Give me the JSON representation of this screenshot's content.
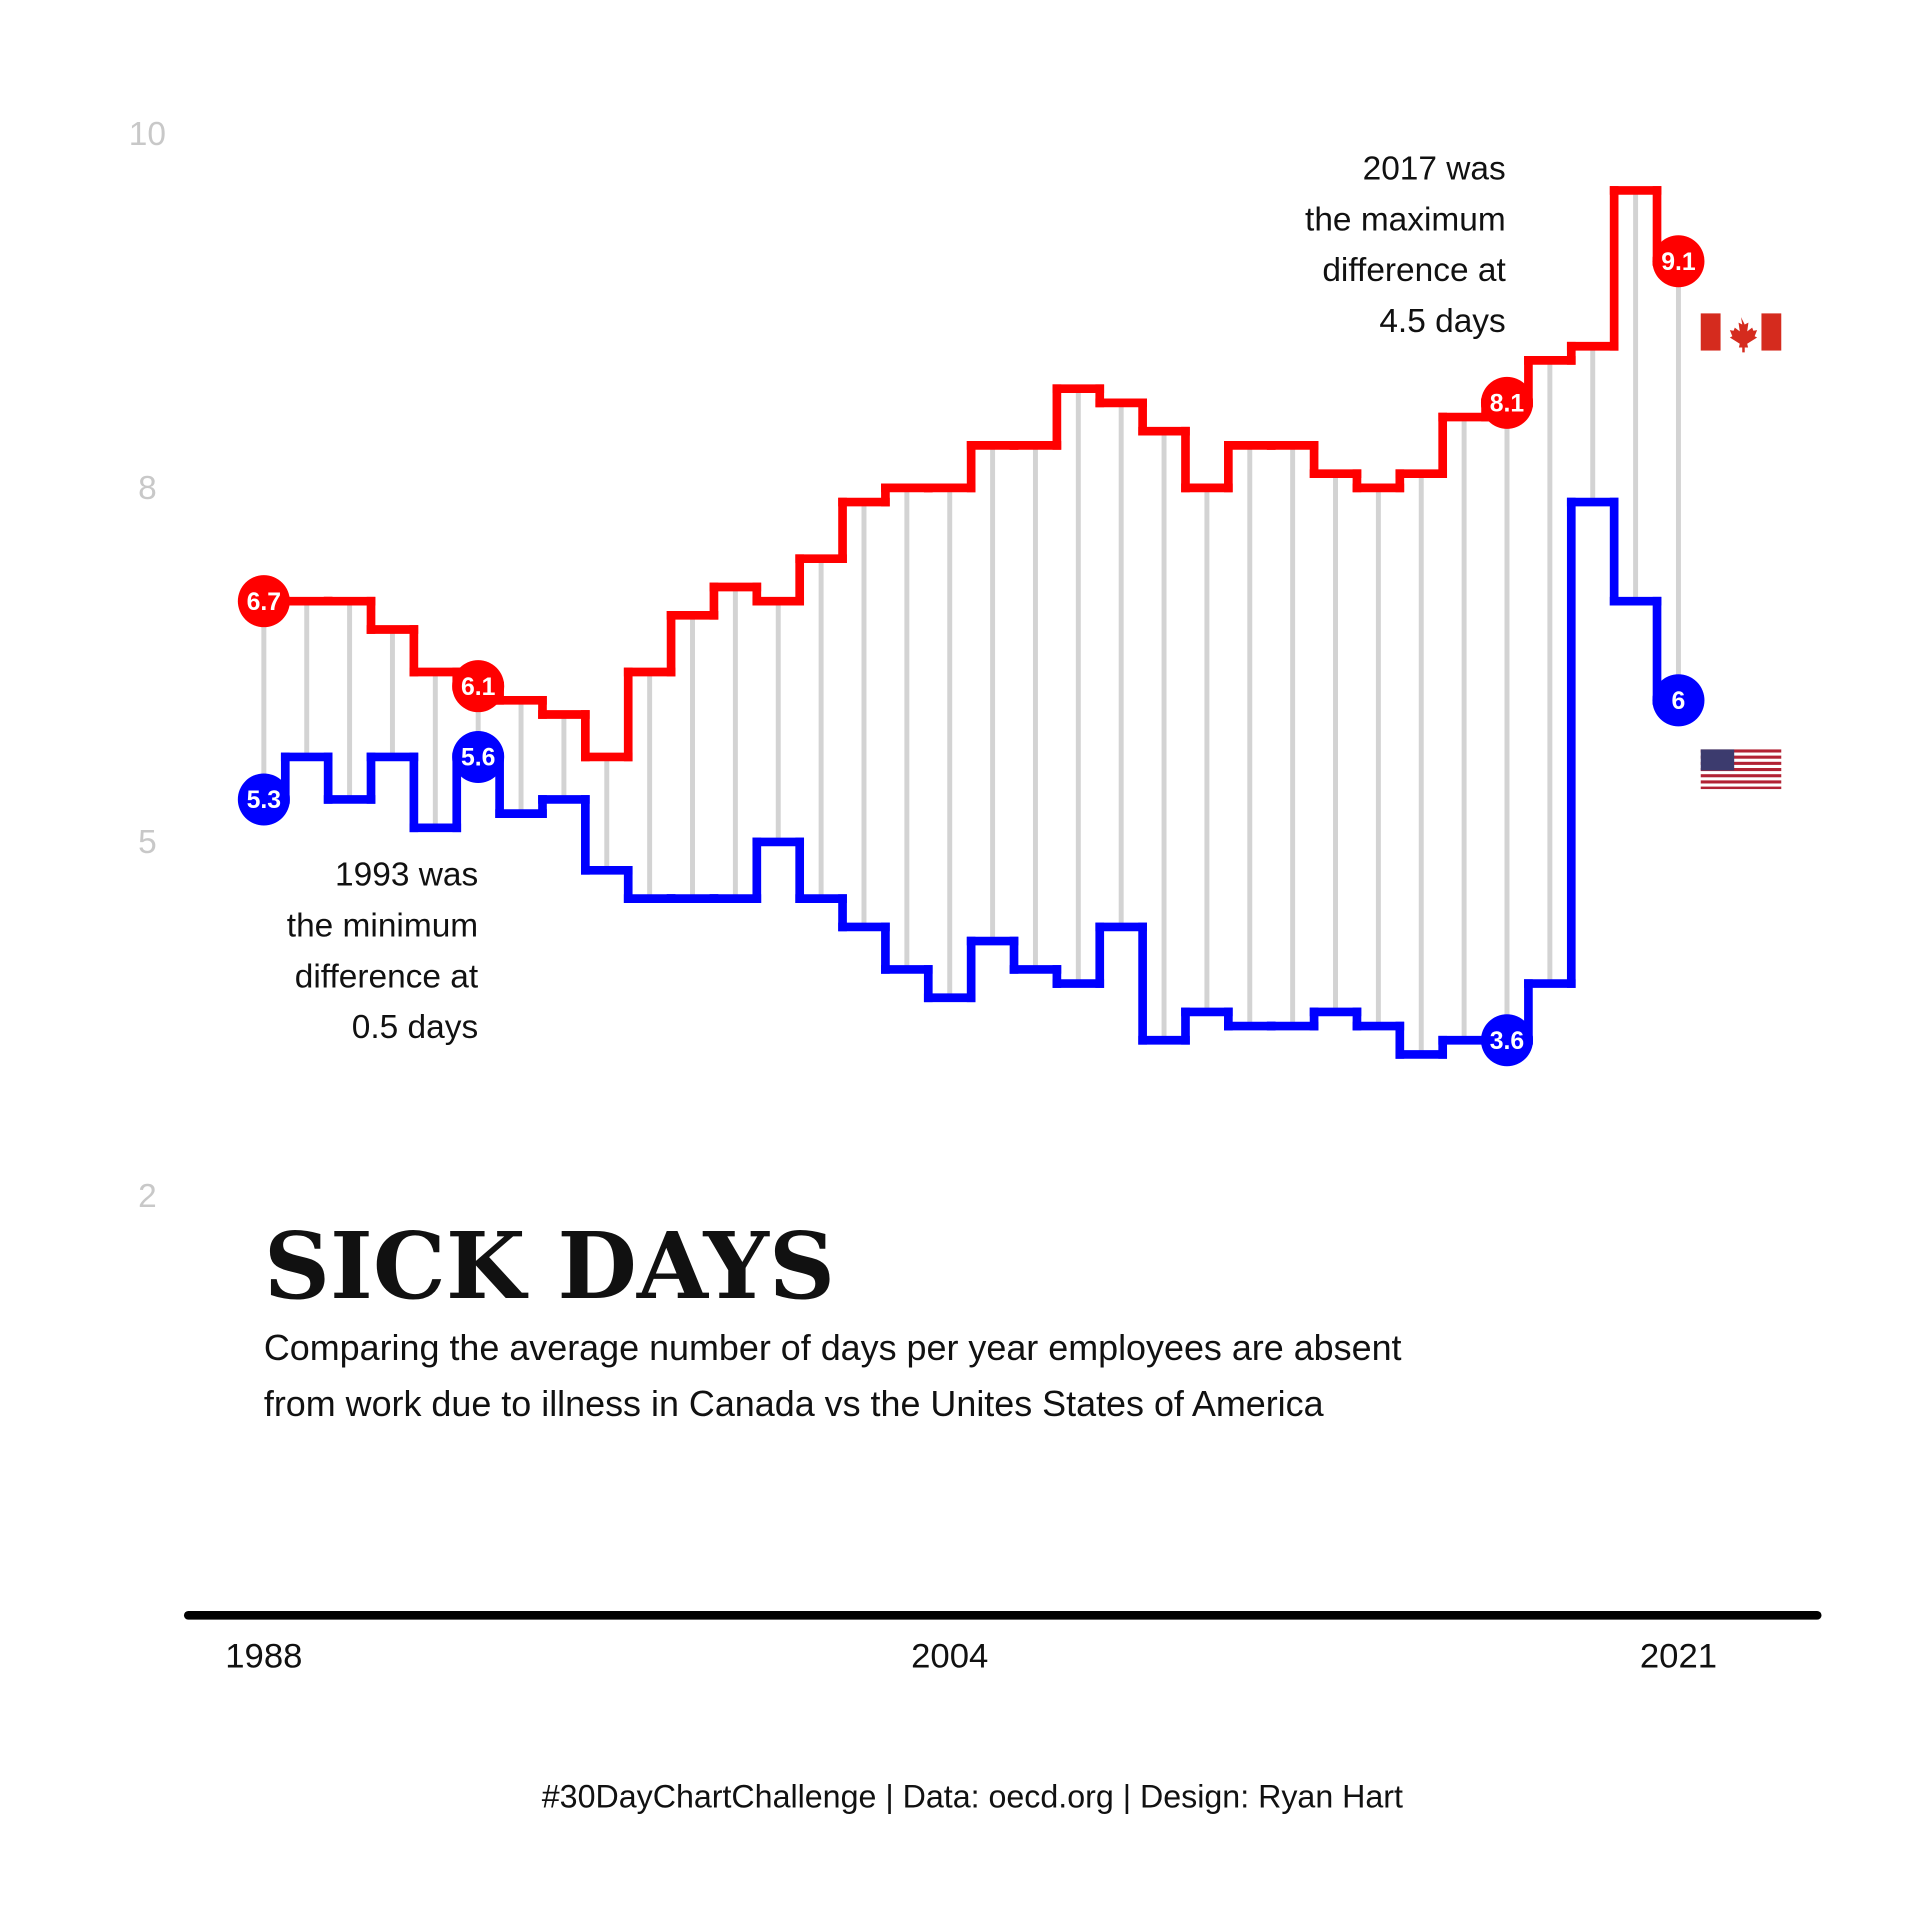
{
  "chart_data": {
    "type": "step",
    "title": "SICK DAYS",
    "subtitle": [
      "Comparing the average number of days per year employees are absent",
      "from work due to illness in Canada vs the Unites States of America"
    ],
    "caption": "#30DayChartChallenge | Data: oecd.org | Design: Ryan Hart",
    "annotations": [
      {
        "x": 2017,
        "lines": [
          "2017 was",
          "the maximum",
          "difference at",
          "4.5 days"
        ]
      },
      {
        "x": 1993,
        "lines": [
          "1993 was",
          "the minimum",
          "difference at",
          "0.5 days"
        ]
      }
    ],
    "x": [
      1988,
      1989,
      1990,
      1991,
      1992,
      1993,
      1994,
      1995,
      1996,
      1997,
      1998,
      1999,
      2000,
      2001,
      2002,
      2003,
      2004,
      2005,
      2006,
      2007,
      2008,
      2009,
      2010,
      2011,
      2012,
      2013,
      2014,
      2015,
      2016,
      2017,
      2018,
      2019,
      2020,
      2021
    ],
    "series": [
      {
        "name": "Canada",
        "color": "#ff0000",
        "values": [
          6.7,
          6.7,
          6.7,
          6.5,
          6.2,
          6.1,
          6.0,
          5.9,
          5.6,
          6.2,
          6.6,
          6.8,
          6.7,
          7.0,
          7.4,
          7.5,
          7.5,
          7.8,
          7.8,
          8.2,
          8.1,
          7.9,
          7.5,
          7.8,
          7.8,
          7.6,
          7.5,
          7.6,
          8.0,
          8.1,
          8.4,
          8.5,
          9.6,
          9.1
        ],
        "value_labels": [
          "6.7",
          null,
          null,
          null,
          null,
          "6.1",
          null,
          null,
          null,
          null,
          null,
          null,
          null,
          null,
          null,
          null,
          null,
          null,
          null,
          null,
          null,
          null,
          null,
          null,
          null,
          null,
          null,
          null,
          null,
          "8.1",
          null,
          null,
          null,
          "9.1"
        ]
      },
      {
        "name": "United States",
        "color": "#0000ff",
        "values": [
          5.3,
          5.6,
          5.3,
          5.6,
          5.1,
          5.6,
          5.2,
          5.3,
          4.8,
          4.6,
          4.6,
          4.6,
          5.0,
          4.6,
          4.4,
          4.1,
          3.9,
          4.3,
          4.1,
          4.0,
          4.4,
          3.6,
          3.8,
          3.7,
          3.7,
          3.8,
          3.7,
          3.5,
          3.6,
          3.6,
          4.0,
          7.4,
          6.7,
          6.0
        ],
        "value_labels": [
          "5.3",
          null,
          null,
          null,
          null,
          "5.6",
          null,
          null,
          null,
          null,
          null,
          null,
          null,
          null,
          null,
          null,
          null,
          null,
          null,
          null,
          null,
          null,
          null,
          null,
          null,
          null,
          null,
          null,
          null,
          "3.6",
          null,
          null,
          null,
          "6"
        ]
      }
    ],
    "xlim": [
      1988,
      2021
    ],
    "xticks": [
      1988,
      2004,
      2021
    ],
    "ylim": [
      -0.46,
      10
    ],
    "yticks": [
      10,
      {
        "value": 7.5,
        "label": "8"
      },
      5,
      {
        "value": 2.5,
        "label": "2"
      }
    ],
    "gap_lines_color": "#d3d3d3"
  }
}
